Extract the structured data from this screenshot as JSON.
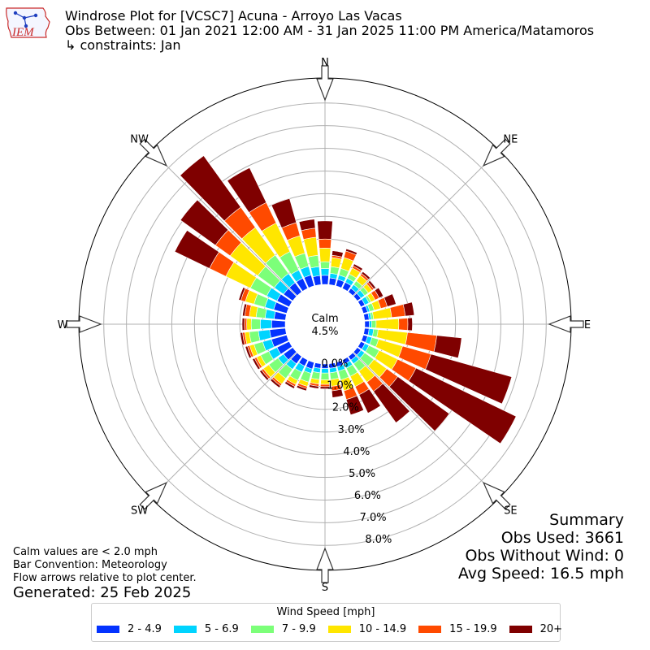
{
  "logo": {
    "text": "IEM"
  },
  "header": {
    "title": "Windrose Plot for [VCSC7] Acuna - Arroyo Las Vacas",
    "obs_between": "Obs Between: 01 Jan 2021 12:00 AM - 31 Jan 2025 11:00 PM America/Matamoros",
    "constraints": "↳ constraints: Jan"
  },
  "notes": {
    "calm_note": "Calm values are < 2.0 mph",
    "bar_convention": "Bar Convention: Meteorology",
    "flow_arrows": "Flow arrows relative to plot center.",
    "generated": "Generated: 25 Feb 2025"
  },
  "summary": {
    "heading": "Summary",
    "obs_used": "Obs Used: 3661",
    "obs_without_wind": "Obs Without Wind: 0",
    "avg_speed": "Avg Speed: 16.5 mph"
  },
  "chart_data": {
    "type": "windrose",
    "calm_label": "Calm",
    "calm_value": "4.5%",
    "compass_labels": [
      "N",
      "NE",
      "E",
      "SE",
      "S",
      "SW",
      "W",
      "NW"
    ],
    "radial_ticks": [
      "0.0%",
      "1.0%",
      "2.0%",
      "3.0%",
      "4.0%",
      "5.0%",
      "6.0%",
      "7.0%",
      "8.0%"
    ],
    "rmax": 9.1,
    "bar_width_deg": 8.5,
    "legend_title": "Wind Speed [mph]",
    "bins": [
      {
        "label": "2 - 4.9",
        "color": "#0433ff"
      },
      {
        "label": "5 - 6.9",
        "color": "#00d4ff"
      },
      {
        "label": "7 - 9.9",
        "color": "#7cff79"
      },
      {
        "label": "10 - 14.9",
        "color": "#ffe600"
      },
      {
        "label": "15 - 19.9",
        "color": "#ff4a00"
      },
      {
        "label": "20+",
        "color": "#7f0000"
      }
    ],
    "directions": [
      0,
      10,
      20,
      30,
      40,
      50,
      60,
      70,
      80,
      90,
      100,
      110,
      120,
      130,
      140,
      150,
      160,
      170,
      180,
      190,
      200,
      210,
      220,
      230,
      240,
      250,
      260,
      270,
      280,
      290,
      300,
      310,
      320,
      330,
      340,
      350
    ],
    "frequencies": [
      [
        0.4,
        0.3,
        0.3,
        0.6,
        0.4,
        0.8
      ],
      [
        0.3,
        0.2,
        0.3,
        0.4,
        0.1,
        0.2
      ],
      [
        0.3,
        0.2,
        0.3,
        0.5,
        0.3,
        0.1
      ],
      [
        0.3,
        0.2,
        0.2,
        0.3,
        0.1,
        0.1
      ],
      [
        0.2,
        0.2,
        0.2,
        0.3,
        0.1,
        0.1
      ],
      [
        0.2,
        0.2,
        0.2,
        0.2,
        0.1,
        0.1
      ],
      [
        0.2,
        0.2,
        0.1,
        0.2,
        0.2,
        0.2
      ],
      [
        0.2,
        0.1,
        0.2,
        0.3,
        0.3,
        0.4
      ],
      [
        0.2,
        0.1,
        0.1,
        0.8,
        0.6,
        0.4
      ],
      [
        0.2,
        0.1,
        0.2,
        1.0,
        0.4,
        0.2
      ],
      [
        0.2,
        0.2,
        0.2,
        1.3,
        1.3,
        1.1
      ],
      [
        0.2,
        0.2,
        0.3,
        1.1,
        1.3,
        3.7
      ],
      [
        0.2,
        0.2,
        0.5,
        0.9,
        0.9,
        4.9
      ],
      [
        0.2,
        0.2,
        0.5,
        0.7,
        0.6,
        2.8
      ],
      [
        0.2,
        0.2,
        0.4,
        0.6,
        0.5,
        1.7
      ],
      [
        0.2,
        0.2,
        0.4,
        0.5,
        0.4,
        0.9
      ],
      [
        0.2,
        0.2,
        0.4,
        0.5,
        0.4,
        0.7
      ],
      [
        0.2,
        0.2,
        0.3,
        0.3,
        0.2,
        0.3
      ],
      [
        0.2,
        0.2,
        0.3,
        0.2,
        0.1,
        0.1
      ],
      [
        0.2,
        0.2,
        0.3,
        0.2,
        0.1,
        0.1
      ],
      [
        0.3,
        0.2,
        0.4,
        0.2,
        0.1,
        0.1
      ],
      [
        0.3,
        0.3,
        0.4,
        0.2,
        0.1,
        0.1
      ],
      [
        0.4,
        0.3,
        0.5,
        0.3,
        0.1,
        0.1
      ],
      [
        0.5,
        0.3,
        0.5,
        0.3,
        0.1,
        0.1
      ],
      [
        0.6,
        0.4,
        0.4,
        0.2,
        0.1,
        0.1
      ],
      [
        0.7,
        0.4,
        0.4,
        0.2,
        0.1,
        0.1
      ],
      [
        0.7,
        0.5,
        0.4,
        0.2,
        0.1,
        0.1
      ],
      [
        0.6,
        0.5,
        0.4,
        0.2,
        0.1,
        0.1
      ],
      [
        0.5,
        0.4,
        0.4,
        0.3,
        0.2,
        0.1
      ],
      [
        0.6,
        0.4,
        0.5,
        0.4,
        0.2,
        0.1
      ],
      [
        0.6,
        0.5,
        0.8,
        1.2,
        0.8,
        1.7
      ],
      [
        0.5,
        0.5,
        0.9,
        1.5,
        0.8,
        1.9
      ],
      [
        0.5,
        0.5,
        1.0,
        1.5,
        1.1,
        2.8
      ],
      [
        0.5,
        0.4,
        0.9,
        1.4,
        1.0,
        1.7
      ],
      [
        0.5,
        0.4,
        0.6,
        0.8,
        0.6,
        1.1
      ],
      [
        0.4,
        0.4,
        0.5,
        0.8,
        0.4,
        0.4
      ]
    ]
  }
}
